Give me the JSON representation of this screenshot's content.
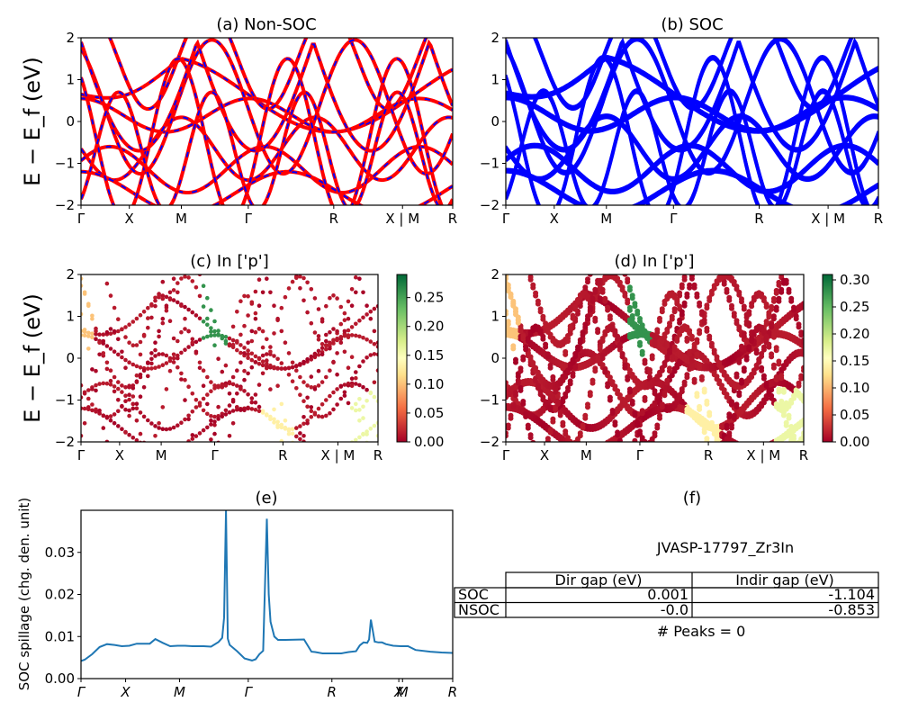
{
  "figure": {
    "panel_a_title": "(a) Non-SOC",
    "panel_b_title": "(b) SOC",
    "panel_c_title": "(c)  In ['p']",
    "panel_d_title": "(d) In ['p']",
    "panel_e_title": "(e)",
    "panel_f_title": "(f)",
    "band_ylabel": "E − E_f (eV)",
    "kpath_labels": [
      "Γ",
      "X",
      "M",
      "Γ",
      "R",
      "X | M",
      "R"
    ],
    "kpath_labels_e": [
      "Γ",
      "X",
      "M",
      "Γ",
      "R",
      "X",
      "M",
      "R"
    ]
  },
  "colors": {
    "nonsoc_band": "#ff0000",
    "nonsoc_dash": "#0000ff",
    "soc_band": "#0000ff",
    "spillage_line": "#1f77b4",
    "cmap_low": "#a50026",
    "cmap_mid": "#ffffbf",
    "cmap_high": "#006837"
  },
  "chart_data": [
    {
      "type": "line",
      "panel": "a",
      "title": "(a) Non-SOC",
      "ylabel": "E − E_f (eV)",
      "ylim": [
        -2,
        2
      ],
      "yticks": [
        -2,
        -1,
        0,
        1,
        2
      ],
      "xticks": [
        "Γ",
        "X",
        "M",
        "Γ",
        "R",
        "X | M",
        "R"
      ]
    },
    {
      "type": "line",
      "panel": "b",
      "title": "(b) SOC",
      "ylim": [
        -2,
        2
      ],
      "yticks": [
        -2,
        -1,
        0,
        1,
        2
      ],
      "xticks": [
        "Γ",
        "X",
        "M",
        "Γ",
        "R",
        "X | M",
        "R"
      ]
    },
    {
      "type": "scatter",
      "panel": "c",
      "title": "(c)  In ['p']",
      "ylabel": "E − E_f (eV)",
      "ylim": [
        -2,
        2
      ],
      "colorbar_ticks": [
        "0.00",
        "0.05",
        "0.10",
        "0.15",
        "0.20",
        "0.25"
      ],
      "colorbar_range": [
        0,
        0.29
      ],
      "xticks": [
        "Γ",
        "X",
        "M",
        "Γ",
        "R",
        "X | M",
        "R"
      ]
    },
    {
      "type": "scatter",
      "panel": "d",
      "title": "(d) In ['p']",
      "ylim": [
        -2,
        2
      ],
      "colorbar_ticks": [
        "0.00",
        "0.05",
        "0.10",
        "0.15",
        "0.20",
        "0.25",
        "0.30"
      ],
      "colorbar_range": [
        0,
        0.31
      ],
      "xticks": [
        "Γ",
        "X",
        "M",
        "Γ",
        "R",
        "X | M",
        "R"
      ]
    },
    {
      "type": "line",
      "panel": "e",
      "title": "(e)",
      "ylabel": "SOC spillage (chg. den. unit)",
      "ylim": [
        0,
        0.04
      ],
      "yticks": [
        "0.00",
        "0.01",
        "0.02",
        "0.03"
      ],
      "xticks": [
        "Γ",
        "X",
        "M",
        "Γ",
        "R",
        "X",
        "M",
        "R"
      ],
      "x": [
        0,
        0.01,
        0.03,
        0.05,
        0.07,
        0.09,
        0.11,
        0.13,
        0.15,
        0.17,
        0.185,
        0.2,
        0.22,
        0.24,
        0.26,
        0.28,
        0.3,
        0.32,
        0.33,
        0.35,
        0.37,
        0.38,
        0.385,
        0.39,
        0.395,
        0.4,
        0.42,
        0.44,
        0.46,
        0.47,
        0.48,
        0.49,
        0.5,
        0.505,
        0.51,
        0.52,
        0.53,
        0.55,
        0.6,
        0.62,
        0.63,
        0.65,
        0.7,
        0.72,
        0.74,
        0.75,
        0.76,
        0.77,
        0.775,
        0.78,
        0.79,
        0.8,
        0.81,
        0.82,
        0.84,
        0.86,
        0.88,
        0.9,
        0.94,
        0.97,
        1.0
      ],
      "y": [
        0.0042,
        0.0045,
        0.0058,
        0.0075,
        0.0082,
        0.008,
        0.0077,
        0.0078,
        0.0083,
        0.0083,
        0.0083,
        0.0094,
        0.0085,
        0.0077,
        0.0078,
        0.0078,
        0.0077,
        0.0077,
        0.0077,
        0.0076,
        0.0087,
        0.0097,
        0.0145,
        0.04,
        0.0095,
        0.008,
        0.0065,
        0.0048,
        0.0043,
        0.0046,
        0.0058,
        0.0066,
        0.038,
        0.02,
        0.0135,
        0.01,
        0.0092,
        0.0092,
        0.0093,
        0.0064,
        0.0063,
        0.006,
        0.006,
        0.0063,
        0.0065,
        0.0079,
        0.0086,
        0.0085,
        0.0093,
        0.014,
        0.0088,
        0.0086,
        0.0086,
        0.0082,
        0.0078,
        0.0077,
        0.0077,
        0.0068,
        0.0064,
        0.0062,
        0.0061
      ]
    },
    {
      "type": "table",
      "panel": "f",
      "title": "(f)",
      "caption": "JVASP-17797_Zr3In",
      "columns": [
        "Dir gap (eV)",
        "Indir gap (eV)"
      ],
      "rows": [
        {
          "label": "SOC",
          "values": [
            "0.001",
            "-1.104"
          ]
        },
        {
          "label": "NSOC",
          "values": [
            "-0.0",
            "-0.853"
          ]
        }
      ],
      "footer": "# Peaks = 0"
    }
  ]
}
